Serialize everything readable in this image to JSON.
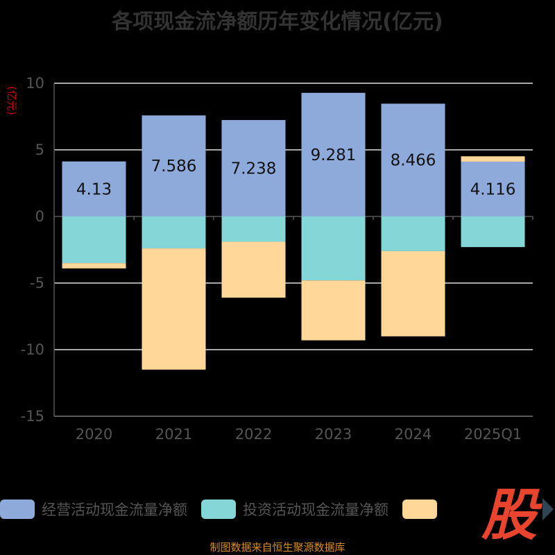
{
  "chart_data": {
    "type": "bar",
    "stacked": true,
    "title": "各项现金流净额历年变化情况(亿元)",
    "unit_label": "(亿元)",
    "categories": [
      "2020",
      "2021",
      "2022",
      "2023",
      "2024",
      "2025Q1"
    ],
    "y_ticks": [
      "10",
      "5",
      "0",
      "-5",
      "-10",
      "-15"
    ],
    "ylim": [
      -15,
      10
    ],
    "grid": true,
    "legend_position": "bottom",
    "series": [
      {
        "name": "经营活动现金流量净额",
        "color": "#8eaadb",
        "values": [
          4.13,
          7.586,
          7.238,
          9.281,
          8.466,
          4.116
        ],
        "labels": [
          "4.13",
          "7.586",
          "7.238",
          "9.281",
          "8.466",
          "4.116"
        ]
      },
      {
        "name": "投资活动现金流量净额",
        "color": "#85d6d6",
        "values": [
          -3.5,
          -2.4,
          -1.9,
          -4.8,
          -2.6,
          -2.3
        ]
      },
      {
        "name": "",
        "color": "#ffd899",
        "values": [
          -0.4,
          -9.1,
          -4.2,
          -4.5,
          -6.4,
          0.4
        ]
      }
    ]
  },
  "source_note": "制图数据来自恒生聚源数据库",
  "logo_text": "股"
}
